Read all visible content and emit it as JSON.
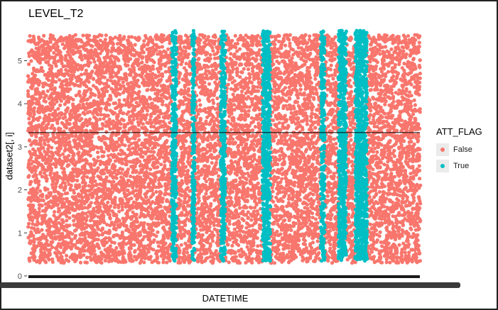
{
  "chart_data": {
    "type": "scatter",
    "title": "LEVEL_T2",
    "xlabel": "DATETIME",
    "ylabel": "dataset2[, i]",
    "ylim": [
      -0.05,
      5.75
    ],
    "yticks": [
      0,
      1,
      2,
      3,
      4,
      5
    ],
    "grid": false,
    "legend": {
      "title": "ATT_FLAG",
      "placement": "right",
      "entries": [
        {
          "label": "False",
          "color": "#F8766D"
        },
        {
          "label": "True",
          "color": "#00BFC4"
        }
      ]
    },
    "hline": 3.33,
    "series": [
      {
        "name": "False",
        "color": "#F8766D",
        "y_range": [
          0.3,
          5.6
        ]
      },
      {
        "name": "True",
        "color": "#00BFC4",
        "y_range": [
          0.35,
          5.7
        ]
      }
    ],
    "x_range": [
      0,
      1
    ],
    "true_intervals": [
      [
        0.366,
        0.378
      ],
      [
        0.418,
        0.425
      ],
      [
        0.491,
        0.503
      ],
      [
        0.598,
        0.618
      ],
      [
        0.747,
        0.757
      ],
      [
        0.792,
        0.812
      ],
      [
        0.835,
        0.865
      ]
    ]
  }
}
